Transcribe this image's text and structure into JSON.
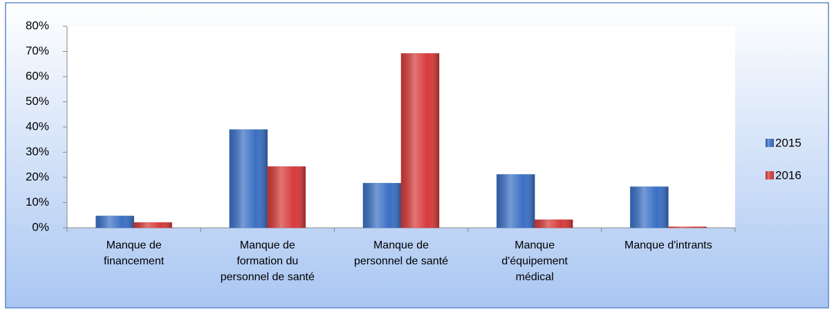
{
  "chart_data": {
    "type": "bar",
    "categories": [
      "Manque de financement",
      "Manque de formation du personnel de santé",
      "Manque de personnel de santé",
      "Manque d'équipement médical",
      "Manque d'intrants"
    ],
    "series": [
      {
        "name": "2015",
        "color": "#3a6fc4",
        "values": [
          4.7,
          39,
          17.7,
          21.2,
          16.3
        ]
      },
      {
        "name": "2016",
        "color": "#d63a3a",
        "values": [
          2.1,
          24.3,
          69.2,
          3.2,
          0.4
        ]
      }
    ],
    "ylim": [
      0,
      80
    ],
    "yticks": [
      {
        "value": 0,
        "label": "0%"
      },
      {
        "value": 10,
        "label": "10%"
      },
      {
        "value": 20,
        "label": "20%"
      },
      {
        "value": 30,
        "label": "30%"
      },
      {
        "value": 40,
        "label": "40%"
      },
      {
        "value": 50,
        "label": "50%"
      },
      {
        "value": 60,
        "label": "60%"
      },
      {
        "value": 70,
        "label": "70%"
      },
      {
        "value": 80,
        "label": "80%"
      }
    ],
    "grid": false,
    "legend": "right"
  }
}
